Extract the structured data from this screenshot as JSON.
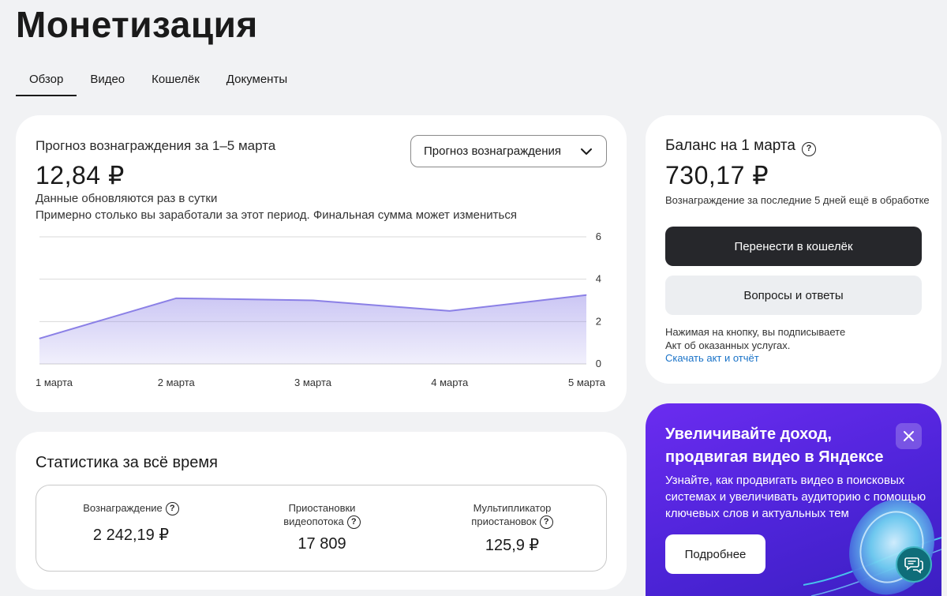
{
  "page": {
    "title": "Монетизация"
  },
  "tabs": [
    {
      "label": "Обзор",
      "active": true
    },
    {
      "label": "Видео"
    },
    {
      "label": "Кошелёк"
    },
    {
      "label": "Документы"
    }
  ],
  "forecast": {
    "title": "Прогноз вознаграждения за 1–5 марта",
    "amount": "12,84 ₽",
    "note_update": "Данные обновляются раз в сутки",
    "note_estimate": "Примерно столько вы заработали за этот период. Финальная сумма может измениться",
    "select_value": "Прогноз вознаграждения",
    "chart_color": "#8b80e6"
  },
  "chart_data": {
    "type": "area",
    "x": [
      "1 марта",
      "2 марта",
      "3 марта",
      "4 марта",
      "5 марта"
    ],
    "values": [
      1.2,
      3.1,
      3.0,
      2.5,
      3.25
    ],
    "ylim": [
      0,
      6
    ],
    "y_ticks": [
      "0",
      "2",
      "4",
      "6"
    ],
    "grid": true
  },
  "stats": {
    "title": "Статистика за всё время",
    "reward_label": "Вознаграждение",
    "reward_value": "2 242,19 ₽",
    "stops_label_1": "Приостановки",
    "stops_label_2": "видеопотока",
    "stops_value": "17 809",
    "mult_label_1": "Мультипликатор",
    "mult_label_2": "приостановок",
    "mult_value": "125,9 ₽"
  },
  "balance": {
    "title": "Баланс на 1 марта",
    "amount": "730,17 ₽",
    "note": "Вознаграждение за последние 5 дней ещё в обработке",
    "transfer_button": "Перенести в кошелёк",
    "faq_button": "Вопросы и ответы",
    "legal_1": "Нажимая на кнопку, вы подписываете",
    "legal_2": "Акт об оказанных услугах.",
    "link": "Скачать акт и отчёт"
  },
  "promo": {
    "title_1": "Увеличивайте доход,",
    "title_2": "продвигая видео в Яндексе",
    "text_1": "Узнайте, как продвигать видео в поисковых",
    "text_2": "системах и увеличивать аудиторию с помощью",
    "text_3": "ключевых слов и актуальных тем",
    "button": "Подробнее"
  },
  "icons": {
    "help": "question-circle-icon",
    "dropdown": "chevron-down-icon",
    "close": "close-icon",
    "chat": "chat-support-icon"
  }
}
